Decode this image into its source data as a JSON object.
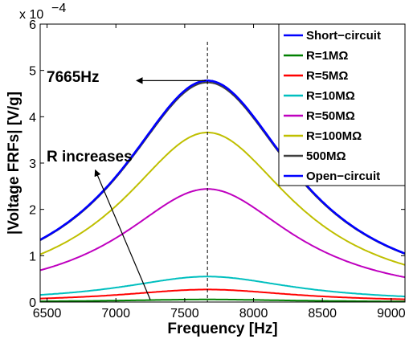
{
  "chart_data": {
    "type": "line",
    "xlabel": "Frequency [Hz]",
    "ylabel": "|Voltage FRFs| [V/g]",
    "y_exponent": "x 10",
    "y_exponent_power": "−4",
    "xlim": [
      6450,
      9100
    ],
    "ylim": [
      0,
      6
    ],
    "x_ticks": [
      6500,
      7000,
      7500,
      8000,
      8500,
      9000
    ],
    "y_ticks": [
      0,
      1,
      2,
      3,
      4,
      5,
      6
    ],
    "grid": false,
    "legend_position": "top-right",
    "resonance_line": {
      "x": 7665,
      "style": "dashed"
    },
    "series": [
      {
        "name": "Short−circuit",
        "color": "#0000ff",
        "peak_x": 7665,
        "peak_y": 4.78,
        "halfwidth": 760
      },
      {
        "name": "R=1MΩ",
        "color": "#008000",
        "peak_x": 7665,
        "peak_y": 0.055,
        "halfwidth": 760
      },
      {
        "name": "R=5MΩ",
        "color": "#ff0000",
        "peak_x": 7665,
        "peak_y": 0.27,
        "halfwidth": 760
      },
      {
        "name": "R=10MΩ",
        "color": "#00bfbf",
        "peak_x": 7665,
        "peak_y": 0.55,
        "halfwidth": 760
      },
      {
        "name": "R=50MΩ",
        "color": "#bf00bf",
        "peak_x": 7665,
        "peak_y": 2.44,
        "halfwidth": 760
      },
      {
        "name": "R=100MΩ",
        "color": "#bfbf00",
        "peak_x": 7665,
        "peak_y": 3.66,
        "halfwidth": 760
      },
      {
        "name": "500MΩ",
        "color": "#404040",
        "peak_x": 7665,
        "peak_y": 4.74,
        "halfwidth": 760
      },
      {
        "name": "Open−circuit",
        "color": "#0000ff",
        "peak_x": 7665,
        "peak_y": 4.78,
        "halfwidth": 760
      }
    ],
    "annotations": [
      {
        "text": "7665Hz",
        "arrow_to_x": 7665,
        "arrow_to_y": 4.78,
        "arrow_from_x": 7150,
        "arrow_from_y": 4.78
      },
      {
        "text": "R increases",
        "arrow_from_x": 7250,
        "arrow_from_y": 0.05,
        "arrow_to_x": 6850,
        "arrow_to_y": 2.85
      }
    ]
  }
}
